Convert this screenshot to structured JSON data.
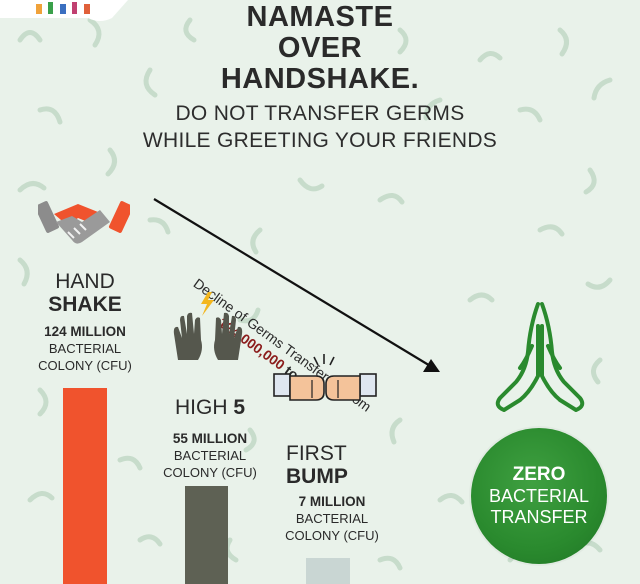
{
  "headline": {
    "line1": "NAMASTE",
    "line2": "OVER",
    "line3": "HANDSHAKE."
  },
  "subheadline": {
    "line1": "DO NOT TRANSFER GERMS",
    "line2": "WHILE GREETING YOUR FRIENDS"
  },
  "arrow_caption": {
    "line1": "Decline of Germs Transferred from",
    "from_value": "124,000,000",
    "connector": "to",
    "to_value": "Zero"
  },
  "greetings": [
    {
      "title_plain": "HAND",
      "title_bold": "SHAKE",
      "amount": "124 MILLION",
      "unit_line1": "BACTERIAL",
      "unit_line2": "COLONY (CFU)",
      "bar_value": 124,
      "color": "#f0532d",
      "icon": "handshake-icon"
    },
    {
      "title_plain": "HIGH",
      "title_bold": "5",
      "amount": "55 MILLION",
      "unit_line1": "BACTERIAL",
      "unit_line2": "COLONY (CFU)",
      "bar_value": 55,
      "color": "#5e6154",
      "icon": "high-five-icon"
    },
    {
      "title_plain": "FIRST",
      "title_bold": "BUMP",
      "amount": "7 MILLION",
      "unit_line1": "BACTERIAL",
      "unit_line2": "COLONY (CFU)",
      "bar_value": 7,
      "color": "#c9d6d3",
      "icon": "fist-bump-icon"
    }
  ],
  "namaste": {
    "line1": "ZERO",
    "line2": "BACTERIAL",
    "line3": "TRANSFER",
    "color": "#2a8a2e",
    "icon": "namaste-hands-icon"
  }
}
